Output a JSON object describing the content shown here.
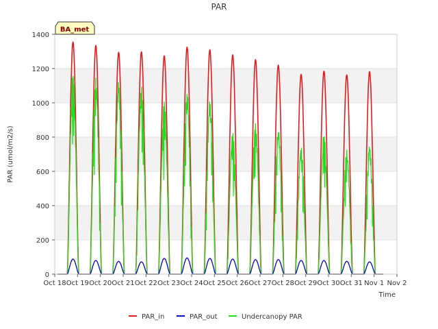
{
  "chart_data": {
    "type": "line",
    "title": "PAR",
    "xlabel": "Time",
    "ylabel": "PAR (umol/m2/s)",
    "site_label": "BA_met",
    "xlim": [
      0,
      15
    ],
    "ylim": [
      0,
      1400
    ],
    "x_ticks": [
      {
        "v": 0,
        "label": "Oct 18"
      },
      {
        "v": 1,
        "label": "Oct 19"
      },
      {
        "v": 2,
        "label": "Oct 20"
      },
      {
        "v": 3,
        "label": "Oct 21"
      },
      {
        "v": 4,
        "label": "Oct 22"
      },
      {
        "v": 5,
        "label": "Oct 23"
      },
      {
        "v": 6,
        "label": "Oct 24"
      },
      {
        "v": 7,
        "label": "Oct 25"
      },
      {
        "v": 8,
        "label": "Oct 26"
      },
      {
        "v": 9,
        "label": "Oct 27"
      },
      {
        "v": 10,
        "label": "Oct 28"
      },
      {
        "v": 11,
        "label": "Oct 29"
      },
      {
        "v": 12,
        "label": "Oct 30"
      },
      {
        "v": 13,
        "label": "Oct 31"
      },
      {
        "v": 14,
        "label": "Nov 1"
      },
      {
        "v": 15,
        "label": "Nov 2"
      }
    ],
    "y_ticks": [
      {
        "v": 0,
        "label": "0"
      },
      {
        "v": 200,
        "label": "200"
      },
      {
        "v": 400,
        "label": "400"
      },
      {
        "v": 600,
        "label": "600"
      },
      {
        "v": 800,
        "label": "800"
      },
      {
        "v": 1000,
        "label": "1000"
      },
      {
        "v": 1200,
        "label": "1200"
      },
      {
        "v": 1400,
        "label": "1400"
      }
    ],
    "grid": true,
    "legend_position": "bottom-center",
    "day_centers": [
      0.8,
      1.8,
      2.8,
      3.8,
      4.8,
      5.8,
      6.8,
      7.8,
      8.8,
      9.8,
      10.8,
      11.8,
      12.8,
      13.8
    ],
    "day_halfwidth": 0.25,
    "series": [
      {
        "name": "PAR_in",
        "color": "#e31a1c",
        "daily_peak": [
          1355,
          1335,
          1295,
          1298,
          1275,
          1325,
          1310,
          1280,
          1252,
          1220,
          1167,
          1185,
          1163,
          1182
        ]
      },
      {
        "name": "PAR_out",
        "color": "#0000cc",
        "daily_peak": [
          88,
          80,
          75,
          72,
          92,
          95,
          92,
          88,
          85,
          85,
          80,
          80,
          75,
          72
        ]
      },
      {
        "name": "Undercanopy PAR",
        "color": "#22dd22",
        "daily_peak": [
          1175,
          1150,
          1130,
          1100,
          1010,
          1065,
          1015,
          830,
          880,
          850,
          745,
          820,
          725,
          760
        ]
      }
    ]
  }
}
